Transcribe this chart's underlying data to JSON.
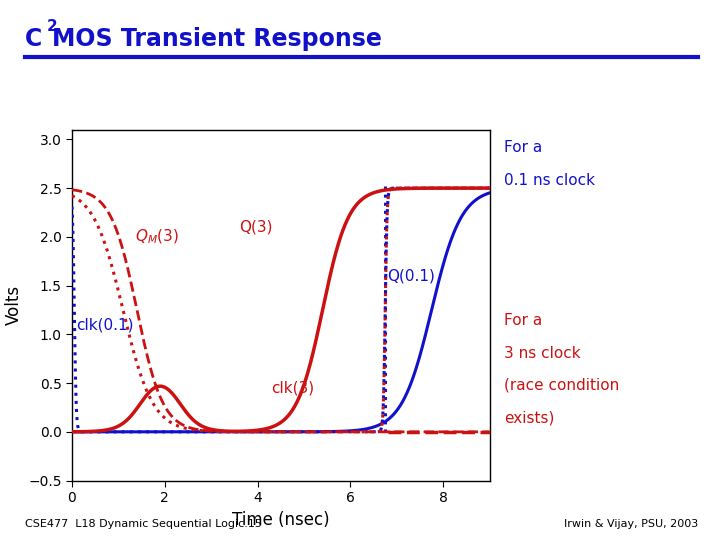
{
  "xlabel": "Time (nsec)",
  "ylabel": "Volts",
  "xlim": [
    0,
    9.0
  ],
  "ylim": [
    -0.5,
    3.1
  ],
  "yticks": [
    -0.5,
    0,
    0.5,
    1,
    1.5,
    2,
    2.5,
    3
  ],
  "xticks": [
    0,
    2,
    4,
    6,
    8
  ],
  "background_color": "#ffffff",
  "title_color": "#1111cc",
  "blue_color": "#1111cc",
  "red_color": "#cc1111",
  "vdd": 2.5,
  "footer_left": "CSE477  L18 Dynamic Sequential Logic.15",
  "footer_right": "Irwin & Vijay, PSU, 2003"
}
